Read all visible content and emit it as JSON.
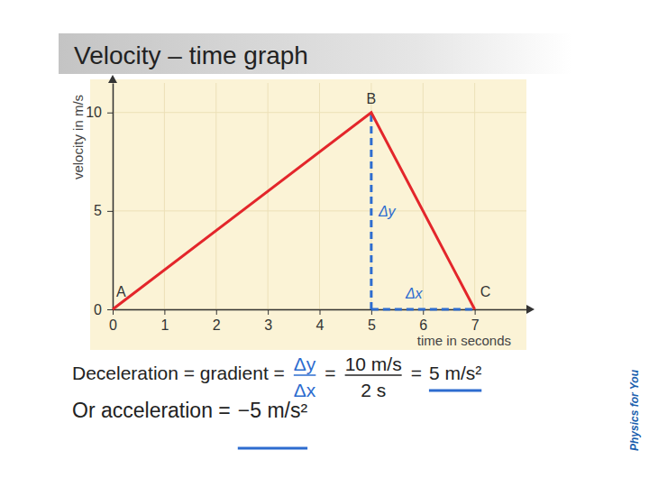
{
  "chart_data": {
    "type": "line",
    "title": "Velocity – time graph",
    "x_label": "time in seconds",
    "y_label": "velocity in m/s",
    "x": [
      0,
      5,
      7
    ],
    "values": [
      0,
      10,
      0
    ],
    "point_labels": [
      "A",
      "B",
      "C"
    ],
    "color": "#e3262b",
    "line_style": "solid",
    "xlim": [
      0,
      8
    ],
    "ylim": [
      0,
      11.5
    ],
    "xticks": [
      0,
      1,
      2,
      3,
      4,
      5,
      6,
      7
    ],
    "yticks": [
      0,
      5,
      10
    ],
    "grid": true,
    "annotations": [
      {
        "text": "Δy",
        "x": 5,
        "y_from": 0,
        "y_to": 10,
        "color": "#2d6ccf",
        "line_style": "dashed"
      },
      {
        "text": "Δx",
        "y": 0,
        "x_from": 5,
        "x_to": 7,
        "color": "#2d6ccf",
        "line_style": "dashed"
      }
    ]
  },
  "working": {
    "line1": {
      "lead": "Deceleration = gradient =",
      "fraction1": {
        "num": "Δy",
        "den": "Δx"
      },
      "equals": "=",
      "fraction2": {
        "num": "10 m/s",
        "den": "2 s"
      },
      "equals2": "=",
      "result": "5 m/s²"
    },
    "line2": {
      "lead": "Or acceleration =",
      "result": "−5 m/s²"
    }
  },
  "logo": "Physics for You"
}
